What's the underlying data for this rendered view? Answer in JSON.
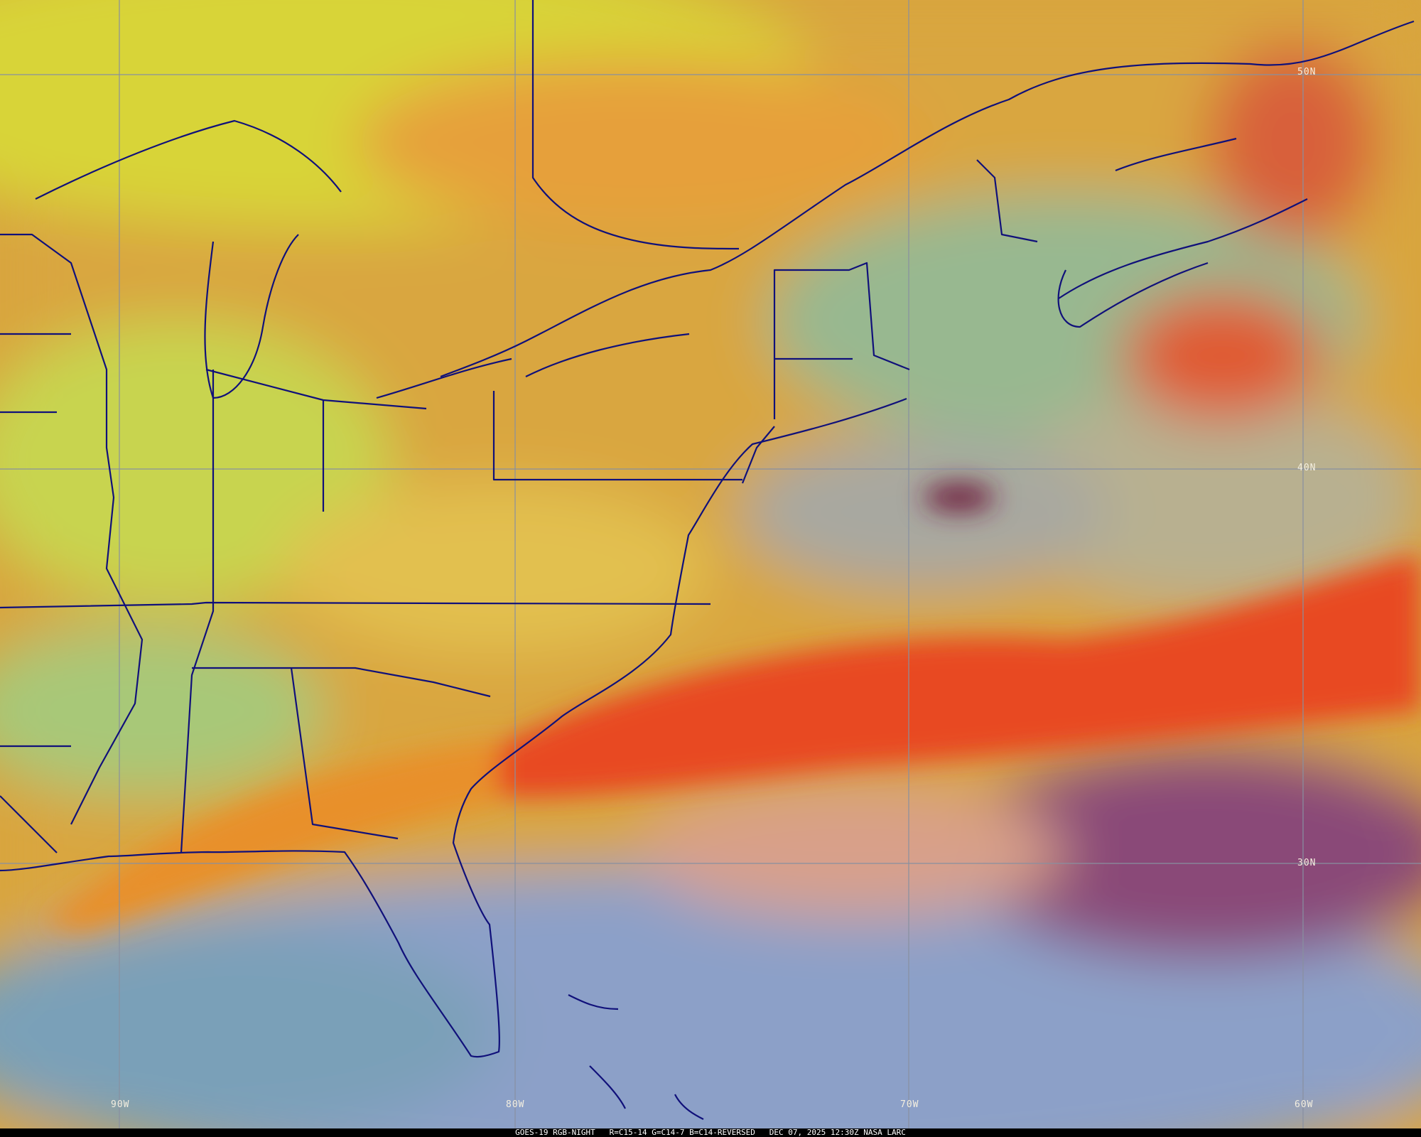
{
  "image": {
    "product": "GOES-19 RGB-NIGHT",
    "bands": "R=C15-14 G=C14-7 B=C14-REVERSED",
    "datetime": "DEC 07, 2025 12:30Z",
    "source": "NASA LARC"
  },
  "latitude_labels": [
    "50N",
    "40N",
    "30N"
  ],
  "longitude_labels": [
    "90W",
    "80W",
    "70W",
    "60W"
  ],
  "colors": {
    "border_lines": "#10107a",
    "grid_lines": "#8890a0",
    "high_cloud_yellow": "#d8d83a",
    "mid_cloud_orange": "#e0a040",
    "frontal_band_red": "#e83a20",
    "clear_ocean_blue": "#8ca0c8",
    "low_cloud_green": "#90b890"
  }
}
